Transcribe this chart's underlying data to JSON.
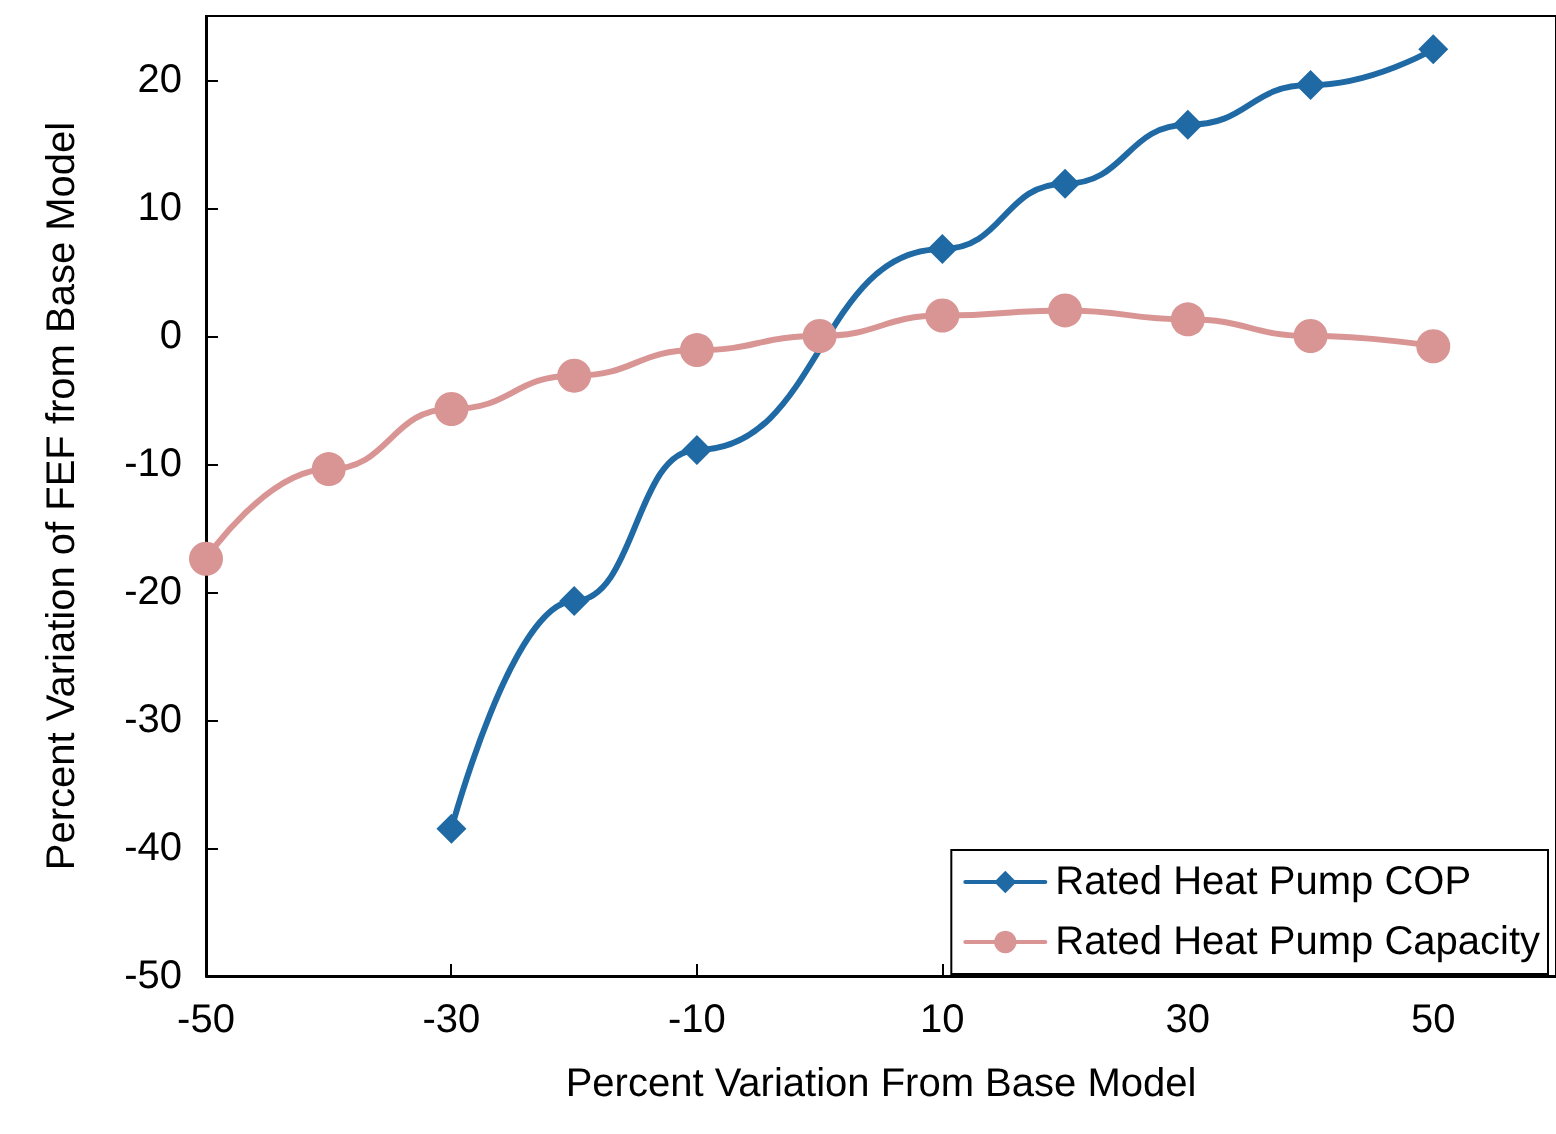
{
  "chart_data": {
    "type": "line",
    "xlabel": "Percent Variation From Base Model",
    "ylabel": "Percent Variation of FEF from Base Model",
    "xlim": [
      -50,
      60
    ],
    "xticks": [
      -50,
      -30,
      -10,
      10,
      30,
      50
    ],
    "ylim": [
      -50,
      25
    ],
    "yticks": [
      -50,
      -40,
      -30,
      -20,
      -10,
      0,
      10,
      20
    ],
    "grid": false,
    "legend": "bottom right",
    "line_style": "solid",
    "series": [
      {
        "name": "Rated Heat Pump COP",
        "color": "#1f6aa5",
        "marker": "diamond",
        "x": [
          -30,
          -20,
          -10,
          10,
          20,
          30,
          40,
          50
        ],
        "values": [
          -38.5,
          -20.7,
          -8.9,
          6.8,
          11.9,
          16.5,
          19.6,
          22.4
        ]
      },
      {
        "name": "Rated Heat Pump Capacity",
        "color": "#d99594",
        "marker": "circle",
        "x": [
          -50,
          -40,
          -30,
          -20,
          -10,
          0,
          10,
          20,
          30,
          40,
          50
        ],
        "values": [
          -17.4,
          -10.4,
          -5.7,
          -3.1,
          -1.1,
          0,
          1.6,
          2.0,
          1.3,
          0,
          -0.8
        ]
      }
    ]
  }
}
